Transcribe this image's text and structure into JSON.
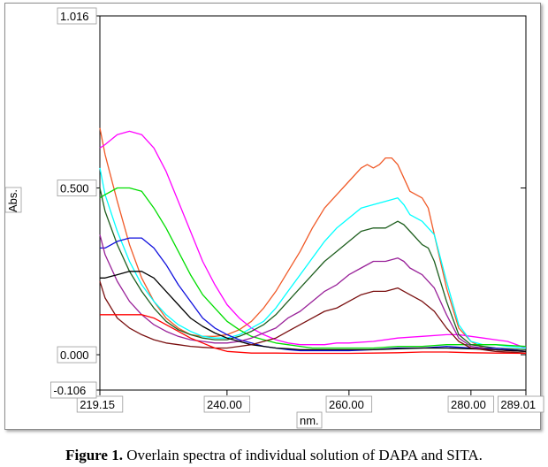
{
  "caption": {
    "label": "Figure 1.",
    "text": "Overlain spectra of individual solution of DAPA and SITA."
  },
  "chart_data": {
    "type": "line",
    "title": "",
    "xlabel": "nm.",
    "ylabel": "Abs.",
    "xlim": [
      219.15,
      289.01
    ],
    "ylim": [
      -0.106,
      1.016
    ],
    "xticks": [
      "219.15",
      "240.00",
      "260.00",
      "280.00",
      "289.01"
    ],
    "xtick_values": [
      219.15,
      240.0,
      260.0,
      280.0,
      289.01
    ],
    "yticks": [
      "1.016",
      "0.500",
      "0.000",
      "-0.106"
    ],
    "ytick_values": [
      1.016,
      0.5,
      0.0,
      -0.106
    ],
    "grid": false,
    "legend": "none",
    "series": [
      {
        "color": "#f05a28",
        "x": [
          219.15,
          220,
          222,
          224,
          226,
          228,
          230,
          232,
          234,
          236,
          238,
          240,
          242,
          244,
          246,
          248,
          250,
          252,
          254,
          256,
          258,
          260,
          262,
          263,
          264,
          265,
          266,
          267,
          268,
          269,
          270,
          272,
          273,
          274,
          276,
          278,
          280,
          282,
          284,
          286,
          289.01
        ],
        "y": [
          0.68,
          0.6,
          0.46,
          0.33,
          0.23,
          0.16,
          0.11,
          0.08,
          0.06,
          0.055,
          0.055,
          0.06,
          0.075,
          0.1,
          0.14,
          0.19,
          0.25,
          0.31,
          0.38,
          0.44,
          0.48,
          0.52,
          0.56,
          0.57,
          0.56,
          0.57,
          0.59,
          0.59,
          0.57,
          0.53,
          0.49,
          0.47,
          0.44,
          0.36,
          0.2,
          0.08,
          0.04,
          0.02,
          0.015,
          0.012,
          0.01
        ]
      },
      {
        "color": "#ff00ff",
        "x": [
          219.15,
          220,
          222,
          224,
          226,
          228,
          230,
          232,
          234,
          236,
          238,
          240,
          242,
          244,
          246,
          248,
          250,
          252,
          254,
          256,
          258,
          260,
          264,
          268,
          272,
          276,
          278,
          280,
          282,
          284,
          286,
          289.01
        ],
        "y": [
          0.62,
          0.63,
          0.66,
          0.67,
          0.66,
          0.62,
          0.55,
          0.46,
          0.37,
          0.28,
          0.21,
          0.15,
          0.11,
          0.08,
          0.06,
          0.045,
          0.035,
          0.03,
          0.03,
          0.03,
          0.035,
          0.035,
          0.04,
          0.05,
          0.055,
          0.06,
          0.06,
          0.055,
          0.05,
          0.045,
          0.04,
          0.02
        ]
      },
      {
        "color": "#00ffff",
        "x": [
          219.15,
          220,
          222,
          224,
          226,
          228,
          230,
          232,
          234,
          236,
          238,
          240,
          242,
          244,
          246,
          248,
          250,
          252,
          254,
          256,
          258,
          260,
          262,
          264,
          266,
          268,
          269,
          270,
          272,
          274,
          276,
          278,
          280,
          282,
          284,
          286,
          289.01
        ],
        "y": [
          0.56,
          0.48,
          0.37,
          0.28,
          0.21,
          0.16,
          0.12,
          0.09,
          0.07,
          0.055,
          0.05,
          0.05,
          0.06,
          0.08,
          0.1,
          0.14,
          0.19,
          0.24,
          0.29,
          0.34,
          0.38,
          0.41,
          0.44,
          0.45,
          0.46,
          0.47,
          0.45,
          0.42,
          0.4,
          0.36,
          0.22,
          0.09,
          0.04,
          0.03,
          0.03,
          0.025,
          0.02
        ]
      },
      {
        "color": "#00dd00",
        "x": [
          219.15,
          220,
          222,
          224,
          226,
          228,
          230,
          232,
          234,
          236,
          238,
          240,
          242,
          244,
          246,
          248,
          250,
          252,
          254,
          256,
          258,
          260,
          264,
          268,
          272,
          276,
          280,
          284,
          289.01
        ],
        "y": [
          0.47,
          0.48,
          0.5,
          0.5,
          0.49,
          0.44,
          0.38,
          0.31,
          0.24,
          0.18,
          0.14,
          0.1,
          0.075,
          0.055,
          0.045,
          0.035,
          0.03,
          0.025,
          0.02,
          0.02,
          0.02,
          0.02,
          0.02,
          0.025,
          0.025,
          0.03,
          0.03,
          0.03,
          0.025
        ]
      },
      {
        "color": "#1f5f1f",
        "x": [
          219.15,
          220,
          222,
          224,
          226,
          228,
          230,
          232,
          234,
          236,
          238,
          240,
          242,
          244,
          246,
          248,
          250,
          252,
          254,
          256,
          258,
          260,
          262,
          264,
          266,
          268,
          269,
          270,
          272,
          273,
          274,
          276,
          278,
          280,
          284,
          289.01
        ],
        "y": [
          0.5,
          0.43,
          0.33,
          0.25,
          0.19,
          0.14,
          0.1,
          0.075,
          0.06,
          0.05,
          0.045,
          0.045,
          0.055,
          0.07,
          0.09,
          0.12,
          0.16,
          0.2,
          0.24,
          0.28,
          0.31,
          0.34,
          0.37,
          0.38,
          0.38,
          0.4,
          0.39,
          0.37,
          0.33,
          0.32,
          0.28,
          0.16,
          0.06,
          0.03,
          0.02,
          0.015
        ]
      },
      {
        "color": "#1010dd",
        "x": [
          219.15,
          220,
          222,
          224,
          226,
          228,
          230,
          232,
          234,
          236,
          238,
          240,
          242,
          244,
          246,
          248,
          250,
          252,
          256,
          260,
          264,
          268,
          272,
          276,
          280,
          284,
          289.01
        ],
        "y": [
          0.32,
          0.32,
          0.34,
          0.35,
          0.35,
          0.32,
          0.27,
          0.21,
          0.16,
          0.11,
          0.08,
          0.06,
          0.045,
          0.035,
          0.025,
          0.02,
          0.015,
          0.012,
          0.012,
          0.012,
          0.015,
          0.02,
          0.02,
          0.025,
          0.02,
          0.02,
          0.01
        ]
      },
      {
        "color": "#992299",
        "x": [
          219.15,
          220,
          222,
          224,
          226,
          228,
          230,
          232,
          234,
          236,
          238,
          240,
          242,
          244,
          246,
          248,
          250,
          252,
          254,
          256,
          258,
          260,
          262,
          264,
          266,
          268,
          269,
          270,
          272,
          274,
          276,
          278,
          280,
          284,
          289.01
        ],
        "y": [
          0.36,
          0.3,
          0.22,
          0.16,
          0.12,
          0.09,
          0.07,
          0.055,
          0.045,
          0.04,
          0.035,
          0.035,
          0.04,
          0.05,
          0.065,
          0.08,
          0.11,
          0.13,
          0.16,
          0.19,
          0.21,
          0.24,
          0.26,
          0.28,
          0.28,
          0.29,
          0.28,
          0.26,
          0.24,
          0.2,
          0.12,
          0.05,
          0.025,
          0.015,
          0.01
        ]
      },
      {
        "color": "#000000",
        "x": [
          219.15,
          220,
          222,
          224,
          226,
          228,
          230,
          232,
          234,
          236,
          238,
          240,
          242,
          244,
          246,
          248,
          250,
          252,
          256,
          260,
          264,
          268,
          272,
          276,
          280,
          284,
          289.01
        ],
        "y": [
          0.23,
          0.23,
          0.24,
          0.25,
          0.25,
          0.23,
          0.19,
          0.15,
          0.11,
          0.085,
          0.065,
          0.05,
          0.04,
          0.03,
          0.025,
          0.02,
          0.018,
          0.015,
          0.015,
          0.015,
          0.015,
          0.018,
          0.02,
          0.02,
          0.018,
          0.015,
          0.01
        ]
      },
      {
        "color": "#7a1010",
        "x": [
          219.15,
          220,
          222,
          224,
          226,
          228,
          230,
          232,
          234,
          236,
          238,
          240,
          242,
          244,
          246,
          248,
          250,
          252,
          254,
          256,
          258,
          260,
          262,
          264,
          266,
          268,
          270,
          272,
          274,
          276,
          278,
          280,
          284,
          289.01
        ],
        "y": [
          0.22,
          0.17,
          0.11,
          0.08,
          0.06,
          0.045,
          0.035,
          0.03,
          0.025,
          0.022,
          0.02,
          0.02,
          0.025,
          0.03,
          0.04,
          0.05,
          0.07,
          0.09,
          0.11,
          0.13,
          0.14,
          0.16,
          0.18,
          0.19,
          0.19,
          0.2,
          0.18,
          0.16,
          0.13,
          0.08,
          0.04,
          0.02,
          0.01,
          0.005
        ]
      },
      {
        "color": "#ff0000",
        "x": [
          219.15,
          220,
          222,
          224,
          226,
          228,
          230,
          232,
          234,
          236,
          238,
          240,
          244,
          248,
          252,
          256,
          260,
          264,
          268,
          272,
          276,
          280,
          284,
          289.01
        ],
        "y": [
          0.12,
          0.12,
          0.12,
          0.12,
          0.12,
          0.11,
          0.09,
          0.07,
          0.05,
          0.035,
          0.02,
          0.01,
          0.005,
          0.005,
          0.004,
          0.004,
          0.004,
          0.005,
          0.006,
          0.008,
          0.008,
          0.006,
          0.005,
          0.004
        ]
      }
    ]
  }
}
